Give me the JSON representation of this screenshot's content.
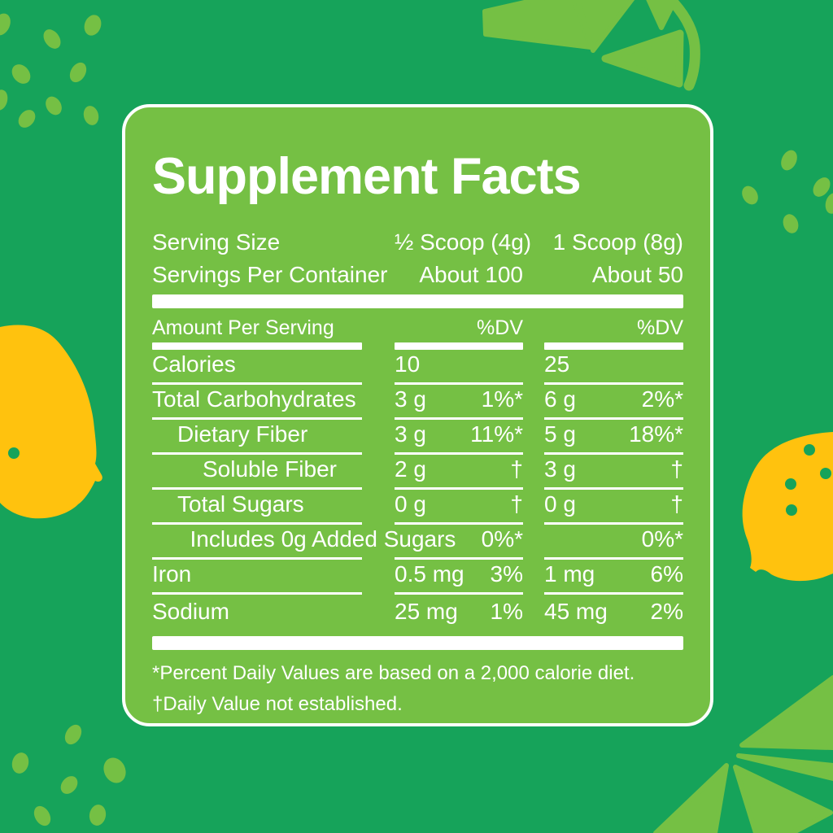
{
  "colors": {
    "background": "#16A35A",
    "lime": "#75C044",
    "yellow": "#FFC20E",
    "text": "#FFFFFF"
  },
  "label": {
    "title": "Supplement Facts",
    "serving_rows": [
      {
        "name": "Serving Size",
        "col1": "½ Scoop (4g)",
        "col2": "1 Scoop (8g)"
      },
      {
        "name": "Servings Per Container",
        "col1": "About 100",
        "col2": "About 50"
      }
    ],
    "column_header": {
      "amount": "Amount Per Serving",
      "dv1": "%DV",
      "dv2": "%DV"
    },
    "rows": [
      {
        "name": "Calories",
        "indent": 0,
        "v1": "10",
        "p1": "",
        "v2": "25",
        "p2": ""
      },
      {
        "name": "Total Carbohydrates",
        "indent": 0,
        "v1": "3 g",
        "p1": "1%*",
        "v2": "6 g",
        "p2": "2%*"
      },
      {
        "name": "Dietary Fiber",
        "indent": 1,
        "v1": "3 g",
        "p1": "11%*",
        "v2": "5 g",
        "p2": "18%*"
      },
      {
        "name": "Soluble Fiber",
        "indent": 2,
        "v1": "2 g",
        "p1": "†",
        "v2": "3 g",
        "p2": "†"
      },
      {
        "name": "Total Sugars",
        "indent": 1,
        "v1": "0 g",
        "p1": "†",
        "v2": "0 g",
        "p2": "†"
      },
      {
        "name": "Includes 0g Added Sugars",
        "indent": 1.5,
        "wide": true,
        "v1": "",
        "p1": "0%*",
        "v2": "",
        "p2": "0%*"
      },
      {
        "name": "Iron",
        "indent": 0,
        "v1": "0.5 mg",
        "p1": "3%",
        "v2": "1 mg",
        "p2": "6%"
      },
      {
        "name": "Sodium",
        "indent": 0,
        "v1": "25 mg",
        "p1": "1%",
        "v2": "45 mg",
        "p2": "2%",
        "last": true
      }
    ],
    "footnotes": [
      "*Percent Daily Values are based on a 2,000 calorie diet.",
      "†Daily Value not established."
    ]
  }
}
